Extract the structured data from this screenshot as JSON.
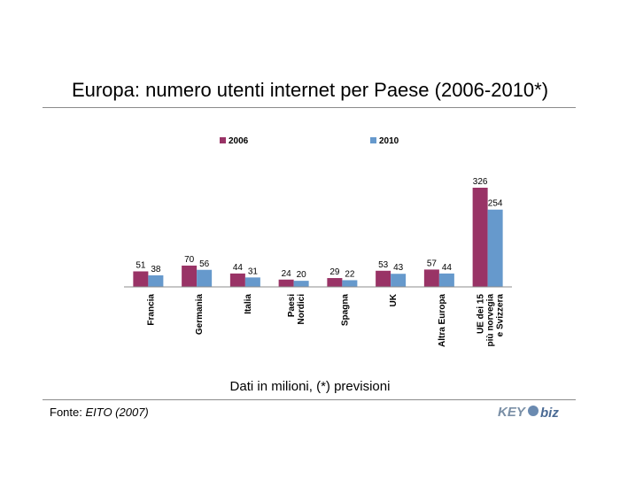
{
  "slide": {
    "title": "Europa: numero utenti internet per Paese (2006-2010*)",
    "note": "Dati in milioni, (*) previsioni",
    "source_label": "Fonte: ",
    "source_name": "EITO (2007)",
    "logo_text_left": "KEY",
    "logo_text_right": "biz"
  },
  "chart_data": {
    "type": "bar",
    "title": "Europa: numero utenti internet per Paese (2006-2010*)",
    "categories": [
      [
        "Francia"
      ],
      [
        "Germania"
      ],
      [
        "Italia"
      ],
      [
        "Paesi",
        "Nordici"
      ],
      [
        "Spagna"
      ],
      [
        "UK"
      ],
      [
        "Altra Europa"
      ],
      [
        "UE dei 15",
        "più norvegia",
        "e Svizzera"
      ]
    ],
    "series": [
      {
        "name": "2006",
        "values": [
          51,
          70,
          44,
          24,
          29,
          53,
          57,
          326
        ],
        "color": "#993366"
      },
      {
        "name": "2010",
        "values": [
          38,
          56,
          31,
          20,
          22,
          43,
          44,
          254
        ],
        "color": "#6699cc"
      }
    ],
    "ylim": [
      0,
      340
    ],
    "grid": false,
    "legend": "top"
  }
}
